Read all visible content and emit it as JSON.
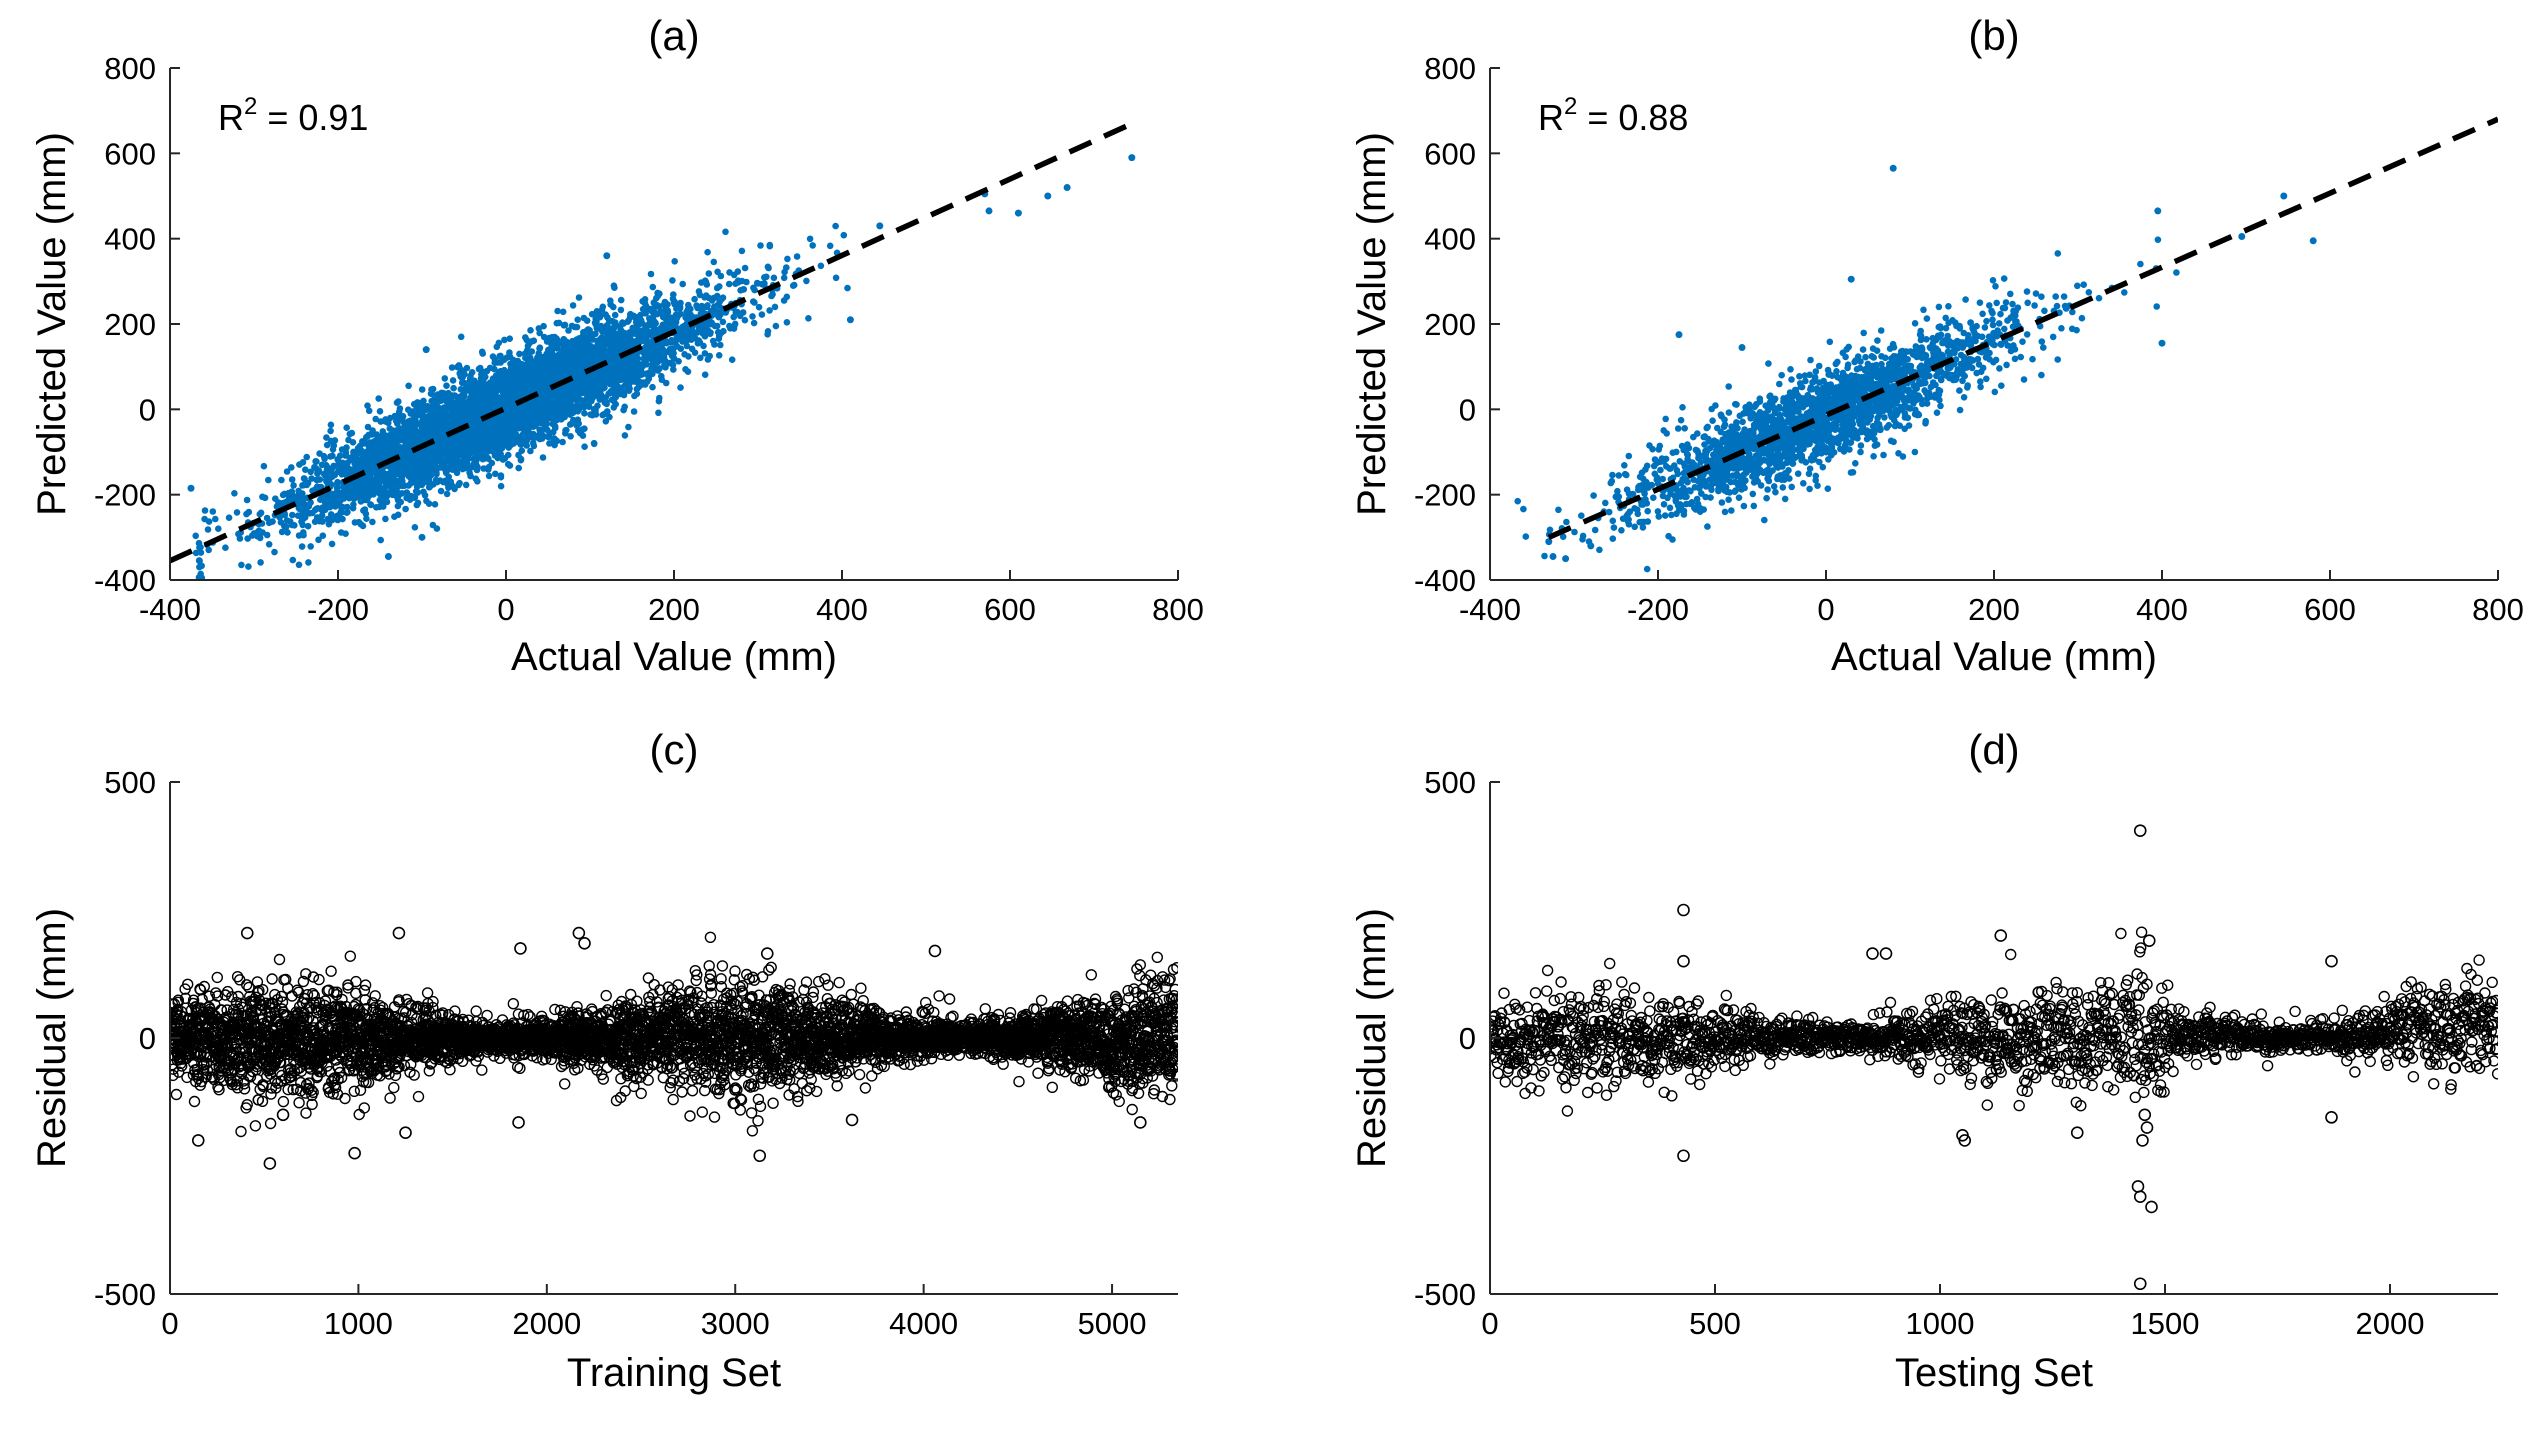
{
  "chart_data": [
    {
      "id": "a",
      "type": "scatter",
      "title": "(a)",
      "xlabel": "Actual Value (mm)",
      "ylabel": "Predicted Value (mm)",
      "xlim": [
        -400,
        800
      ],
      "ylim": [
        -400,
        800
      ],
      "xticks": [
        -400,
        -200,
        0,
        200,
        400,
        600,
        800
      ],
      "yticks": [
        -400,
        -200,
        0,
        200,
        400,
        600,
        800
      ],
      "annotation": {
        "base": "R",
        "superscript": "2",
        "text": " = 0.91"
      },
      "marker_color": "#0072BD",
      "n_points": 5300,
      "point_spread": 55,
      "fit_line": {
        "x": [
          -400,
          740
        ],
        "y": [
          -355,
          665
        ],
        "style": "dashed",
        "color": "#000000"
      },
      "highlighted_points": [
        {
          "x": 745,
          "y": 590
        },
        {
          "x": 668,
          "y": 520
        },
        {
          "x": 645,
          "y": 500
        },
        {
          "x": 570,
          "y": 505
        },
        {
          "x": 575,
          "y": 465
        },
        {
          "x": 610,
          "y": 460
        },
        {
          "x": 445,
          "y": 430
        },
        {
          "x": 410,
          "y": 210
        },
        {
          "x": -375,
          "y": -185
        },
        {
          "x": -365,
          "y": -355
        },
        {
          "x": -140,
          "y": -345
        },
        {
          "x": -100,
          "y": -300
        },
        {
          "x": -95,
          "y": 140
        },
        {
          "x": 120,
          "y": 360
        }
      ]
    },
    {
      "id": "b",
      "type": "scatter",
      "title": "(b)",
      "xlabel": "Actual Value (mm)",
      "ylabel": "Predicted Value (mm)",
      "xlim": [
        -400,
        800
      ],
      "ylim": [
        -400,
        800
      ],
      "xticks": [
        -400,
        -200,
        0,
        200,
        400,
        600,
        800
      ],
      "yticks": [
        -400,
        -200,
        0,
        200,
        400,
        600,
        800
      ],
      "annotation": {
        "base": "R",
        "superscript": "2",
        "text": " = 0.88"
      },
      "marker_color": "#0072BD",
      "n_points": 2240,
      "point_spread": 55,
      "fit_line": {
        "x": [
          -330,
          800
        ],
        "y": [
          -300,
          680
        ],
        "style": "dashed",
        "color": "#000000"
      },
      "highlighted_points": [
        {
          "x": 80,
          "y": 565
        },
        {
          "x": 580,
          "y": 395
        },
        {
          "x": 545,
          "y": 500
        },
        {
          "x": 495,
          "y": 405
        },
        {
          "x": 395,
          "y": 465
        },
        {
          "x": 400,
          "y": 155
        },
        {
          "x": 30,
          "y": 305
        },
        {
          "x": -175,
          "y": 175
        },
        {
          "x": -100,
          "y": 145
        },
        {
          "x": -325,
          "y": -345
        },
        {
          "x": -310,
          "y": -350
        },
        {
          "x": -280,
          "y": -320
        },
        {
          "x": -330,
          "y": -310
        },
        {
          "x": -250,
          "y": -205
        }
      ]
    },
    {
      "id": "c",
      "type": "scatter",
      "title": "(c)",
      "xlabel": "Training Set",
      "ylabel": "Residual (mm)",
      "xlim": [
        0,
        5350
      ],
      "ylim": [
        -500,
        500
      ],
      "xticks": [
        0,
        1000,
        2000,
        3000,
        4000,
        5000
      ],
      "yticks": [
        -500,
        0,
        500
      ],
      "marker_style": "open-circle",
      "marker_color": "#000000",
      "n_points": 5350,
      "noise_sd": 45,
      "highlighted_points": [
        {
          "x": 410,
          "y": 205
        },
        {
          "x": 1215,
          "y": 205
        },
        {
          "x": 2170,
          "y": 205
        },
        {
          "x": 2200,
          "y": 185
        },
        {
          "x": 1860,
          "y": 175
        },
        {
          "x": 4060,
          "y": 170
        },
        {
          "x": 3170,
          "y": 165
        },
        {
          "x": 980,
          "y": -225
        },
        {
          "x": 3130,
          "y": -230
        },
        {
          "x": 530,
          "y": -245
        },
        {
          "x": 150,
          "y": -200
        },
        {
          "x": 1250,
          "y": -185
        },
        {
          "x": 5150,
          "y": -165
        },
        {
          "x": 3620,
          "y": -160
        },
        {
          "x": 600,
          "y": -150
        },
        {
          "x": 1850,
          "y": -165
        }
      ]
    },
    {
      "id": "d",
      "type": "scatter",
      "title": "(d)",
      "xlabel": "Testing Set",
      "ylabel": "Residual (mm)",
      "xlim": [
        0,
        2240
      ],
      "ylim": [
        -500,
        500
      ],
      "xticks": [
        0,
        500,
        1000,
        1500,
        2000
      ],
      "yticks": [
        -500,
        0,
        500
      ],
      "marker_style": "open-circle",
      "marker_color": "#000000",
      "n_points": 2240,
      "noise_sd": 40,
      "highlighted_points": [
        {
          "x": 1445,
          "y": 405
        },
        {
          "x": 430,
          "y": 250
        },
        {
          "x": 1135,
          "y": 200
        },
        {
          "x": 1465,
          "y": 190
        },
        {
          "x": 1445,
          "y": -480
        },
        {
          "x": 1445,
          "y": -310
        },
        {
          "x": 1470,
          "y": -330
        },
        {
          "x": 1440,
          "y": -290
        },
        {
          "x": 430,
          "y": -230
        },
        {
          "x": 1055,
          "y": -200
        },
        {
          "x": 1050,
          "y": -190
        },
        {
          "x": 1305,
          "y": -185
        },
        {
          "x": 1450,
          "y": -200
        },
        {
          "x": 1460,
          "y": -175
        },
        {
          "x": 1455,
          "y": -150
        },
        {
          "x": 1870,
          "y": -155
        },
        {
          "x": 430,
          "y": 150
        },
        {
          "x": 1870,
          "y": 150
        },
        {
          "x": 850,
          "y": 165
        },
        {
          "x": 880,
          "y": 165
        }
      ]
    }
  ]
}
